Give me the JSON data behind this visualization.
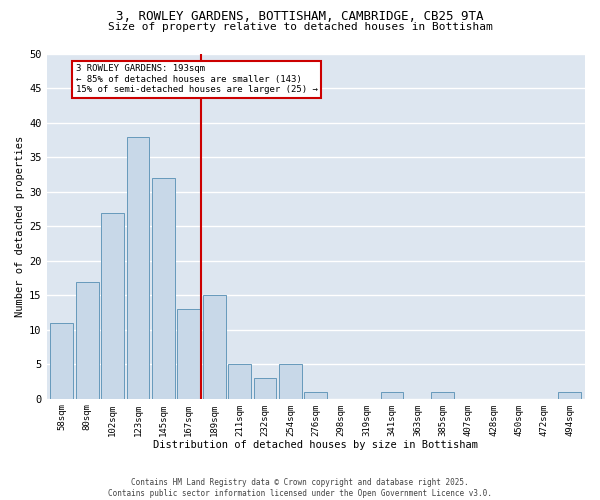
{
  "title_line1": "3, ROWLEY GARDENS, BOTTISHAM, CAMBRIDGE, CB25 9TA",
  "title_line2": "Size of property relative to detached houses in Bottisham",
  "xlabel": "Distribution of detached houses by size in Bottisham",
  "ylabel": "Number of detached properties",
  "categories": [
    "58sqm",
    "80sqm",
    "102sqm",
    "123sqm",
    "145sqm",
    "167sqm",
    "189sqm",
    "211sqm",
    "232sqm",
    "254sqm",
    "276sqm",
    "298sqm",
    "319sqm",
    "341sqm",
    "363sqm",
    "385sqm",
    "407sqm",
    "428sqm",
    "450sqm",
    "472sqm",
    "494sqm"
  ],
  "values": [
    11,
    17,
    27,
    38,
    32,
    13,
    15,
    5,
    3,
    5,
    1,
    0,
    0,
    1,
    0,
    1,
    0,
    0,
    0,
    0,
    1
  ],
  "bar_color": "#c8d8e8",
  "bar_edge_color": "#6699bb",
  "background_color": "#dde6f0",
  "fig_background": "#ffffff",
  "grid_color": "#ffffff",
  "ylim": [
    0,
    50
  ],
  "yticks": [
    0,
    5,
    10,
    15,
    20,
    25,
    30,
    35,
    40,
    45,
    50
  ],
  "property_line_index": 6,
  "property_line_color": "#cc0000",
  "annotation_text": "3 ROWLEY GARDENS: 193sqm\n← 85% of detached houses are smaller (143)\n15% of semi-detached houses are larger (25) →",
  "annotation_box_color": "#cc0000",
  "footer_line1": "Contains HM Land Registry data © Crown copyright and database right 2025.",
  "footer_line2": "Contains public sector information licensed under the Open Government Licence v3.0."
}
